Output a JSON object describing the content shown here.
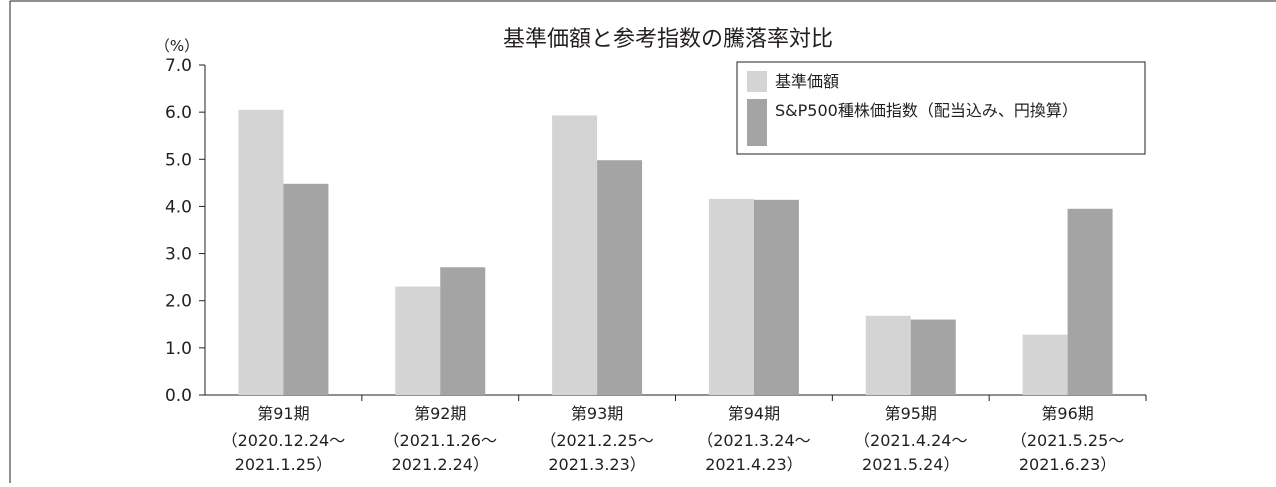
{
  "chart_data": {
    "type": "bar",
    "title": "基準価額と参考指数の騰落率対比",
    "ylabel": "（%）",
    "xlabel": "",
    "ylim": [
      0,
      7
    ],
    "yticks": [
      "0.0",
      "1.0",
      "2.0",
      "3.0",
      "4.0",
      "5.0",
      "6.0",
      "7.0"
    ],
    "grid": false,
    "legend_position": "top-right",
    "categories": [
      {
        "name": "第91期",
        "period_start": "（2020.12.24～",
        "period_end": "2021.1.25）"
      },
      {
        "name": "第92期",
        "period_start": "（2021.1.26～",
        "period_end": "2021.2.24）"
      },
      {
        "name": "第93期",
        "period_start": "（2021.2.25～",
        "period_end": "2021.3.23）"
      },
      {
        "name": "第94期",
        "period_start": "（2021.3.24～",
        "period_end": "2021.4.23）"
      },
      {
        "name": "第95期",
        "period_start": "（2021.4.24～",
        "period_end": "2021.5.24）"
      },
      {
        "name": "第96期",
        "period_start": "（2021.5.25～",
        "period_end": "2021.6.23）"
      }
    ],
    "series": [
      {
        "name": "基準価額",
        "color": "#d4d4d4",
        "values": [
          6.05,
          2.3,
          5.93,
          4.16,
          1.68,
          1.28
        ]
      },
      {
        "name": "S&P500種株価指数（配当込み、円換算）",
        "color": "#a4a4a4",
        "values": [
          4.48,
          2.71,
          4.98,
          4.14,
          1.6,
          3.95
        ]
      }
    ]
  }
}
